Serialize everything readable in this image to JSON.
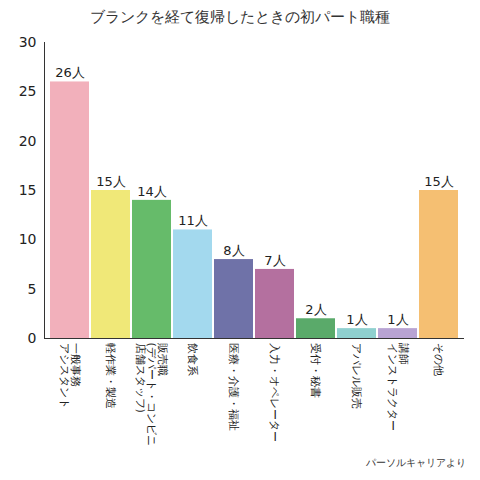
{
  "chart_data": {
    "type": "bar",
    "title": "ブランクを経て復帰したときの初パート職種",
    "categories": [
      "一般事務\nアシスタント",
      "軽作業・製造",
      "販売職\n(デパート・コンビニ\n店舗スタッフ)",
      "飲食系",
      "医療・介護・福祉",
      "入力・オペレーター",
      "受付・秘書",
      "アパレル販売",
      "講師\nインストラクター",
      "その他"
    ],
    "values": [
      26,
      15,
      14,
      11,
      8,
      7,
      2,
      1,
      1,
      15
    ],
    "value_labels": [
      "26人",
      "15人",
      "14人",
      "11人",
      "8人",
      "7人",
      "2人",
      "1人",
      "1人",
      "15人"
    ],
    "colors": [
      "#f2b0bb",
      "#f0e878",
      "#66bb6a",
      "#a3d9ee",
      "#6f72a8",
      "#b4709f",
      "#5aaa6a",
      "#8fd0cf",
      "#b8a3d3",
      "#f5bf72"
    ],
    "ylim": [
      0,
      30
    ],
    "yticks": [
      0,
      5,
      10,
      15,
      20,
      25,
      30
    ],
    "data_labels": true,
    "grid": false,
    "caption": "パーソルキャリアより"
  }
}
